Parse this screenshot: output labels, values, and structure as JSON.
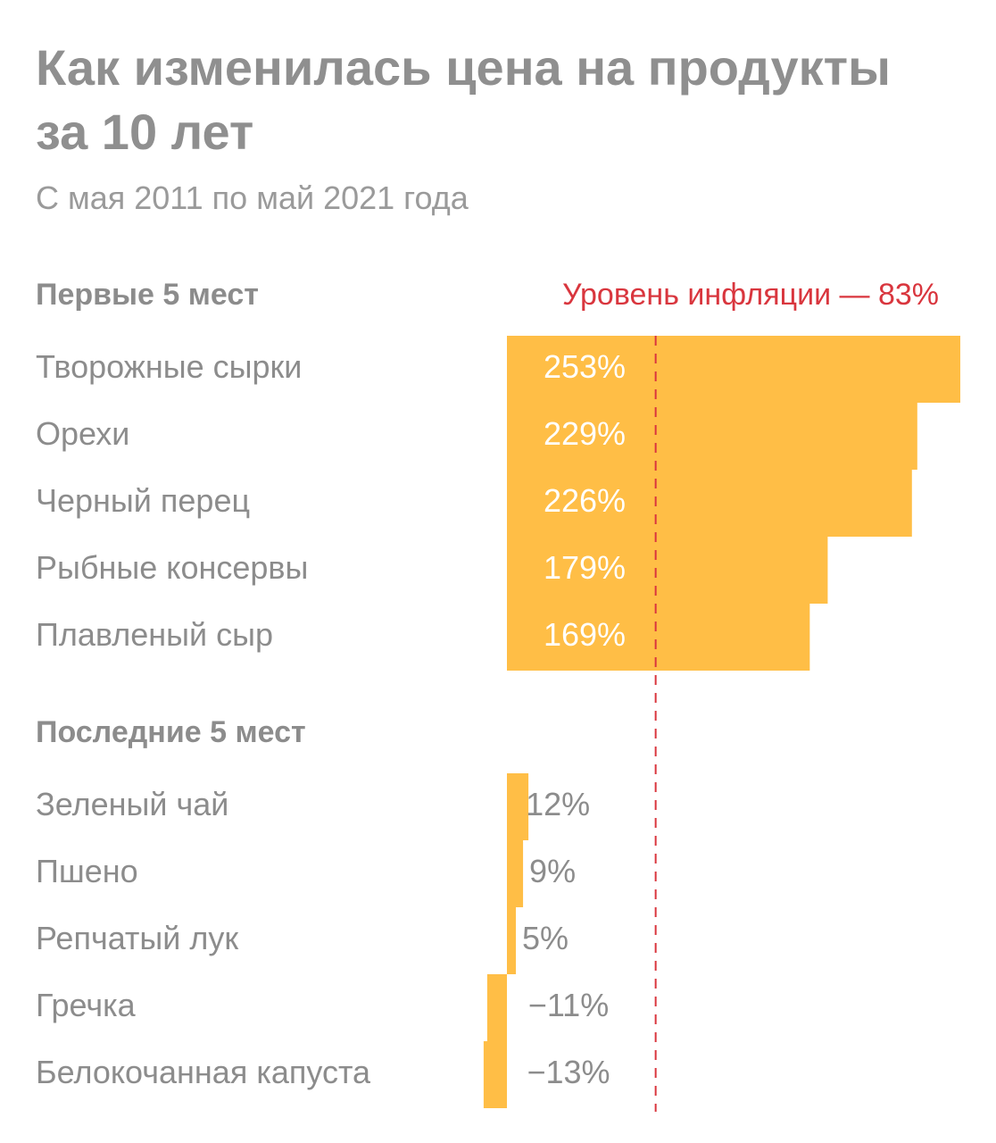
{
  "chart_data": {
    "type": "bar",
    "orientation": "horizontal",
    "title": "Как изменилась цена на продукты за 10 лет",
    "title_lines": [
      "Как изменилась цена на продукты",
      "за 10 лет"
    ],
    "subtitle": "С мая 2011 по май 2021 года",
    "unit": "%",
    "reference_line": {
      "label": "Уровень инфляции — 83%",
      "value": 83,
      "style": "dashed",
      "color": "#d9363e"
    },
    "bar_color": "#ffbe46",
    "groups": [
      {
        "heading": "Первые 5 мест",
        "categories": [
          "Творожные сырки",
          "Орехи",
          "Черный перец",
          "Рыбные консервы",
          "Плавленый сыр"
        ],
        "values": [
          253,
          229,
          226,
          179,
          169
        ],
        "value_labels": [
          "253%",
          "229%",
          "226%",
          "179%",
          "169%"
        ]
      },
      {
        "heading": "Последние 5 мест",
        "categories": [
          "Зеленый чай",
          "Пшено",
          "Репчатый лук",
          "Гречка",
          "Белокочанная капуста"
        ],
        "values": [
          12,
          9,
          5,
          -11,
          -13
        ],
        "value_labels": [
          "12%",
          "9%",
          "5%",
          "−11%",
          "−13%"
        ]
      }
    ]
  }
}
